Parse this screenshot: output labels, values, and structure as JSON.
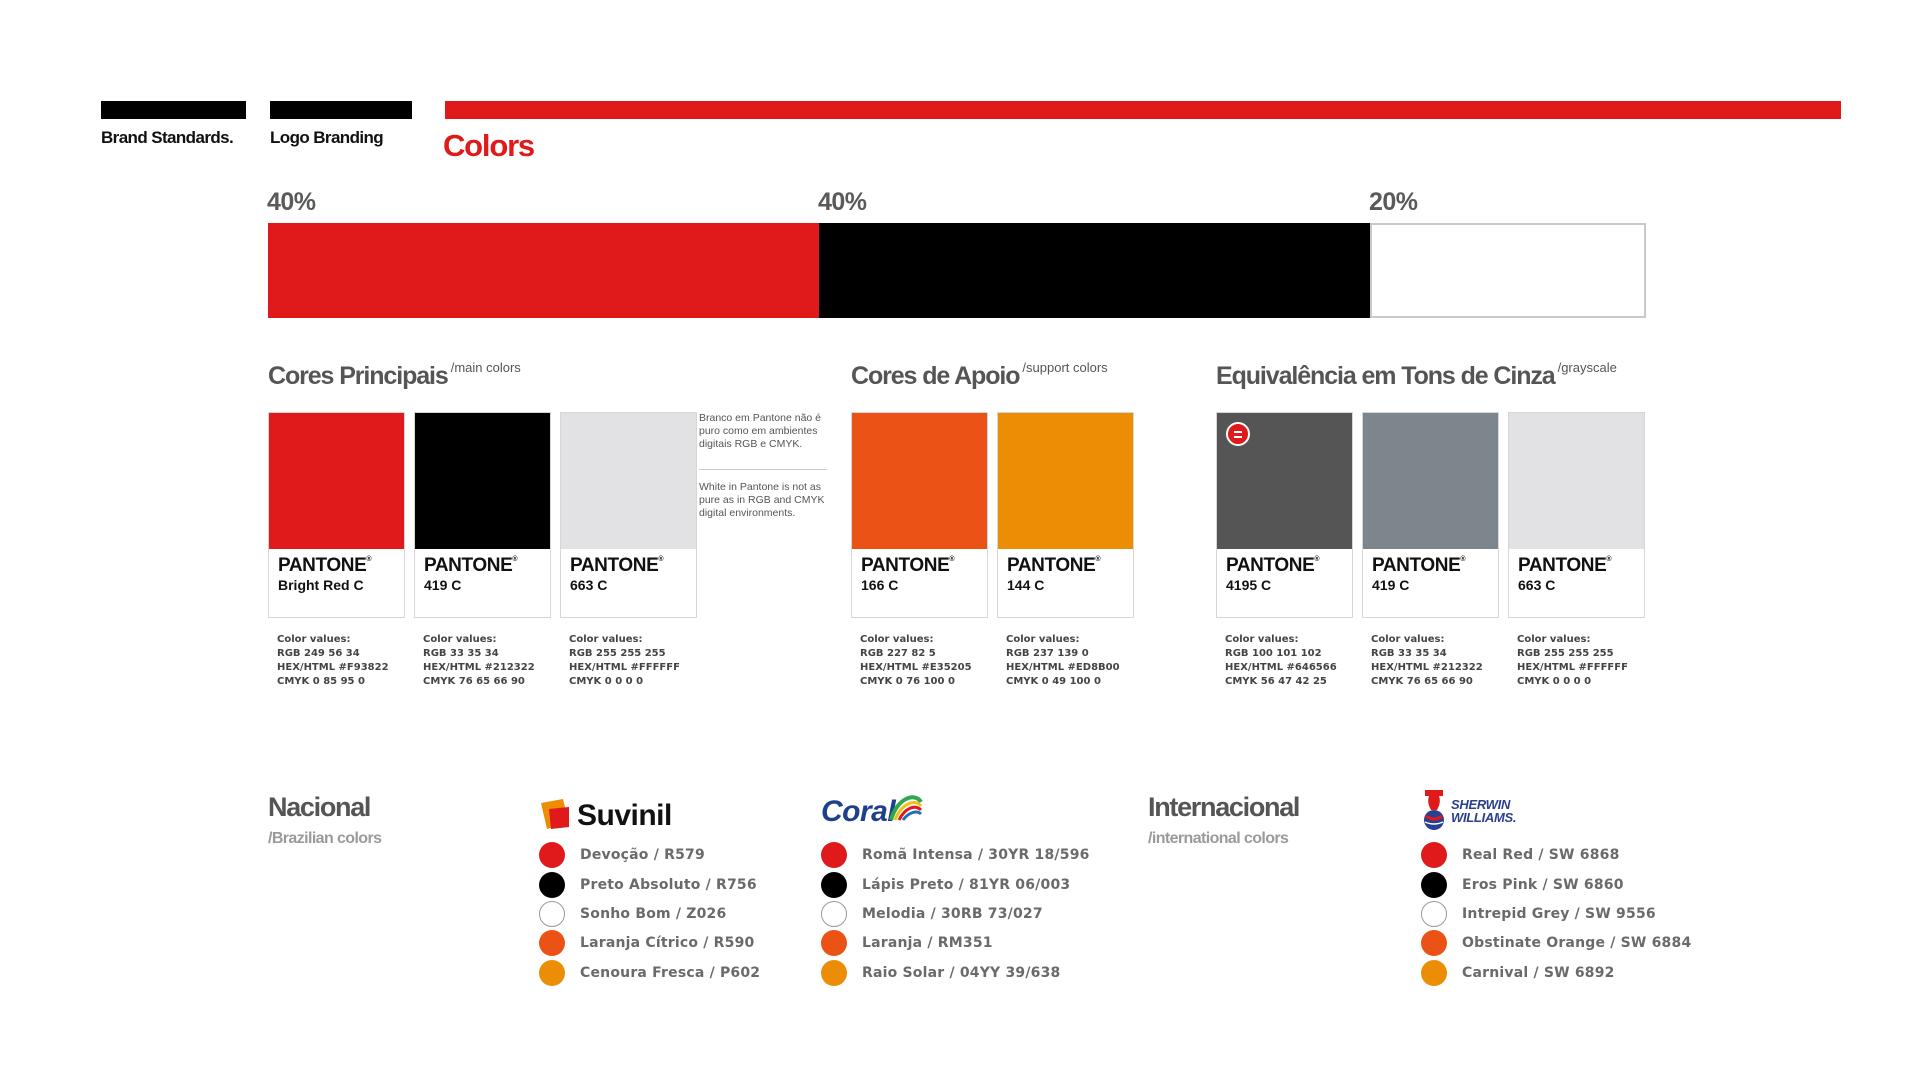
{
  "header": {
    "nav": [
      "Brand Standards.",
      "Logo Branding"
    ],
    "title": "Colors"
  },
  "proportion": {
    "segments": [
      {
        "label": "40%",
        "value": 40,
        "color": "#e01a1a"
      },
      {
        "label": "40%",
        "value": 40,
        "color": "#000000"
      },
      {
        "label": "20%",
        "value": 20,
        "color": "#ffffff"
      }
    ]
  },
  "sections": {
    "main": {
      "title": "Cores Principais",
      "sub": "/main colors"
    },
    "support": {
      "title": "Cores de Apoio",
      "sub": "/support colors"
    },
    "grayscale": {
      "title": "Equivalência em Tons de Cinza",
      "sub": "/grayscale"
    }
  },
  "note": {
    "pt": "Branco em Pantone não é puro como em ambientes digitais RGB e CMYK.",
    "en": "White in Pantone is not as pure as in RGB and CMYK digital environments."
  },
  "swatches": [
    {
      "color": "#e01a1a",
      "brand": "PANTONE",
      "code": "Bright Red C",
      "values_label": "Color values:",
      "rgb": "RGB 249 56 34",
      "hex": "HEX/HTML #F93822",
      "cmyk": "CMYK 0 85 95 0"
    },
    {
      "color": "#000000",
      "brand": "PANTONE",
      "code": "419 C",
      "values_label": "Color values:",
      "rgb": "RGB 33 35 34",
      "hex": "HEX/HTML #212322",
      "cmyk": "CMYK 76 65 66 90"
    },
    {
      "color": "#e2e1e3",
      "brand": "PANTONE",
      "code": "663 C",
      "values_label": "Color values:",
      "rgb": "RGB 255 255 255",
      "hex": "HEX/HTML #FFFFFF",
      "cmyk": "CMYK 0 0 0 0"
    },
    {
      "color": "#ea5315",
      "brand": "PANTONE",
      "code": "166 C",
      "values_label": "Color values:",
      "rgb": "RGB 227 82 5",
      "hex": "HEX/HTML #E35205",
      "cmyk": "CMYK 0 76 100 0"
    },
    {
      "color": "#ec8e05",
      "brand": "PANTONE",
      "code": "144 C",
      "values_label": "Color values:",
      "rgb": "RGB 237 139 0",
      "hex": "HEX/HTML #ED8B00",
      "cmyk": "CMYK 0 49 100 0"
    },
    {
      "color": "#555555",
      "brand": "PANTONE",
      "code": "4195 C",
      "values_label": "Color values:",
      "rgb": "RGB 100 101 102",
      "hex": "HEX/HTML #646566",
      "cmyk": "CMYK 56 47 42 25"
    },
    {
      "color": "#7d868c",
      "brand": "PANTONE",
      "code": "419 C",
      "values_label": "Color values:",
      "rgb": "RGB 33 35 34",
      "hex": "HEX/HTML #212322",
      "cmyk": "CMYK 76 65 66 90"
    },
    {
      "color": "#e2e1e3",
      "brand": "PANTONE",
      "code": "663 C",
      "values_label": "Color values:",
      "rgb": "RGB 255 255 255",
      "hex": "HEX/HTML #FFFFFF",
      "cmyk": "CMYK 0 0 0 0"
    }
  ],
  "regions": {
    "national": {
      "title": "Nacional",
      "sub": "/Brazilian colors"
    },
    "international": {
      "title": "Internacional",
      "sub": "/international colors"
    }
  },
  "suppliers": {
    "suvinil": {
      "logo_text": "Suvinil",
      "items": [
        {
          "color": "#e01a1a",
          "label": "Devoção / R579"
        },
        {
          "color": "#000000",
          "label": "Preto Absoluto / R756"
        },
        {
          "color": "#ffffff",
          "label": "Sonho Bom / Z026"
        },
        {
          "color": "#ea5315",
          "label": "Laranja Cítrico / R590"
        },
        {
          "color": "#ec8e05",
          "label": "Cenoura Fresca / P602"
        }
      ]
    },
    "coral": {
      "logo_text": "Coral",
      "items": [
        {
          "color": "#e01a1a",
          "label": "Romã Intensa / 30YR 18/596"
        },
        {
          "color": "#000000",
          "label": "Lápis Preto / 81YR 06/003"
        },
        {
          "color": "#ffffff",
          "label": "Melodia / 30RB 73/027"
        },
        {
          "color": "#ea5315",
          "label": "Laranja / RM351"
        },
        {
          "color": "#ec8e05",
          "label": "Raio Solar / 04YY 39/638"
        }
      ]
    },
    "sherwin": {
      "logo_text": [
        "SHERWIN",
        "WILLIAMS."
      ],
      "items": [
        {
          "color": "#e01a1a",
          "label": "Real Red / SW 6868"
        },
        {
          "color": "#000000",
          "label": "Eros Pink / SW 6860"
        },
        {
          "color": "#ffffff",
          "label": "Intrepid Grey / SW 9556"
        },
        {
          "color": "#ea5315",
          "label": "Obstinate Orange / SW 6884"
        },
        {
          "color": "#ec8e05",
          "label": "Carnival / SW 6892"
        }
      ]
    }
  },
  "colors": {
    "accent": "#e01a1a",
    "black": "#000000"
  }
}
